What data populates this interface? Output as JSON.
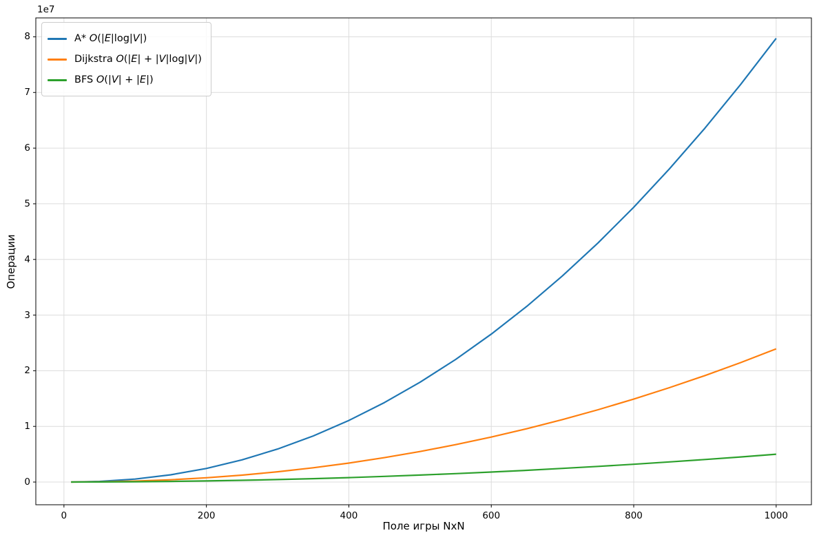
{
  "figure": {
    "background": "#ffffff"
  },
  "chart_data": {
    "type": "line",
    "title": "",
    "xlabel": "Поле игры NxN",
    "ylabel": "Операции",
    "y_axis_offset_label": "1e7",
    "grid": true,
    "grid_color": "#dcdcdc",
    "spine_color": "#000000",
    "legend_position": "upper left",
    "xlim": [
      -39.5,
      1049.5
    ],
    "ylim": [
      -4080000,
      83400000
    ],
    "xticks": {
      "values": [
        0,
        200,
        400,
        600,
        800,
        1000
      ],
      "labels": [
        "0",
        "200",
        "400",
        "600",
        "800",
        "1000"
      ]
    },
    "yticks": {
      "values": [
        0,
        10000000,
        20000000,
        30000000,
        40000000,
        50000000,
        60000000,
        70000000,
        80000000
      ],
      "labels": [
        "0",
        "1",
        "2",
        "3",
        "4",
        "5",
        "6",
        "7",
        "8"
      ]
    },
    "x": [
      10,
      50,
      100,
      150,
      200,
      250,
      300,
      350,
      400,
      450,
      500,
      550,
      600,
      650,
      700,
      750,
      800,
      850,
      900,
      950,
      1000
    ],
    "series": [
      {
        "name": "A* O(|E|log|V|)",
        "color": "#1f77b4",
        "label_runs": [
          [
            "A* ",
            0
          ],
          [
            "O",
            1
          ],
          [
            "(|",
            0
          ],
          [
            "E",
            1
          ],
          [
            "|log|",
            0
          ],
          [
            "V",
            1
          ],
          [
            "|)",
            0
          ]
        ],
        "values": [
          2658,
          112877,
          531512,
          1301184,
          2446043,
          3982892,
          5924736,
          8282176,
          11064172,
          14278356,
          17931569,
          22029986,
          26578944,
          31583734,
          37048704,
          42978150,
          49376817,
          56247492,
          63593424,
          71419518,
          79726406
        ]
      },
      {
        "name": "Dijkstra O(|E| + |V|log|V|)",
        "color": "#ff7f0e",
        "label_runs": [
          [
            "Dijkstra ",
            0
          ],
          [
            "O",
            1
          ],
          [
            "(|",
            0
          ],
          [
            "E",
            1
          ],
          [
            "| + |",
            0
          ],
          [
            "V",
            1
          ],
          [
            "|log|",
            0
          ],
          [
            "V",
            1
          ],
          [
            "|)",
            0
          ]
        ],
        "values": [
          1064,
          38220,
          172877,
          415296,
          771511,
          1245723,
          1841184,
          2560544,
          3406048,
          4379589,
          5482900,
          6717497,
          8084736,
          9585934,
          11222176,
          12994538,
          14904192,
          16951873,
          19138356,
          21464880,
          23931600
        ]
      },
      {
        "name": "BFS O(|V| + |E|)",
        "color": "#2ca02c",
        "label_runs": [
          [
            "BFS ",
            0
          ],
          [
            "O",
            1
          ],
          [
            "(|",
            0
          ],
          [
            "V",
            1
          ],
          [
            "| + |",
            0
          ],
          [
            "E",
            1
          ],
          [
            "|)",
            0
          ]
        ],
        "values": [
          500,
          12500,
          50000,
          112500,
          200000,
          312500,
          450000,
          612500,
          800000,
          1012500,
          1250000,
          1512500,
          1800000,
          2112500,
          2450000,
          2812500,
          3200000,
          3612500,
          4050000,
          4512500,
          5000000
        ]
      }
    ]
  }
}
